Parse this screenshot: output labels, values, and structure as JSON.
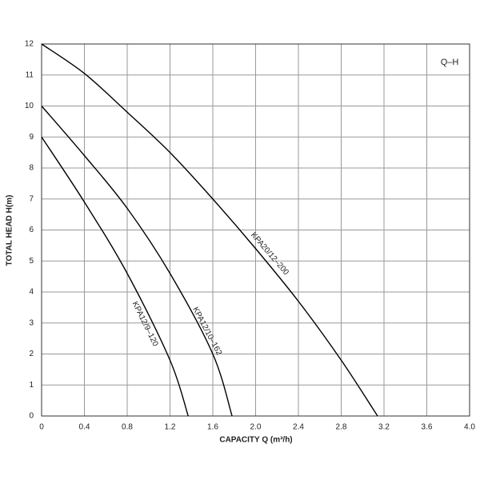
{
  "chart_data": {
    "type": "line",
    "annotation": "Q–H",
    "x_label": "CAPACITY Q (m³/h)",
    "y_label": "TOTAL HEAD H(m)",
    "xlim": [
      0,
      4
    ],
    "ylim": [
      0,
      12
    ],
    "xticks": [
      0,
      0.4,
      0.8,
      1.2,
      1.6,
      {
        "value": 2,
        "label": "2.0"
      },
      2.4,
      2.8,
      3.2,
      3.6,
      {
        "value": 4,
        "label": "4.0"
      }
    ],
    "yticks": [
      0,
      1,
      2,
      3,
      4,
      5,
      6,
      7,
      8,
      9,
      10,
      11,
      12
    ],
    "grid": true,
    "series": [
      {
        "name": "KPA20/12–200",
        "color": "#000000",
        "x": [
          0,
          0.4,
          0.8,
          1.2,
          1.6,
          2.0,
          2.4,
          2.8,
          3.14
        ],
        "values": [
          12,
          11.05,
          9.8,
          8.5,
          7.0,
          5.4,
          3.7,
          1.8,
          0
        ]
      },
      {
        "name": "KPA12/10–162",
        "color": "#000000",
        "x": [
          0,
          0.4,
          0.8,
          1.2,
          1.6,
          1.78
        ],
        "values": [
          10,
          8.4,
          6.7,
          4.6,
          2.0,
          0
        ]
      },
      {
        "name": "KPA12/9–120",
        "color": "#000000",
        "x": [
          0,
          0.4,
          0.8,
          1.2,
          1.37
        ],
        "values": [
          9,
          6.9,
          4.6,
          1.8,
          0
        ]
      }
    ]
  }
}
